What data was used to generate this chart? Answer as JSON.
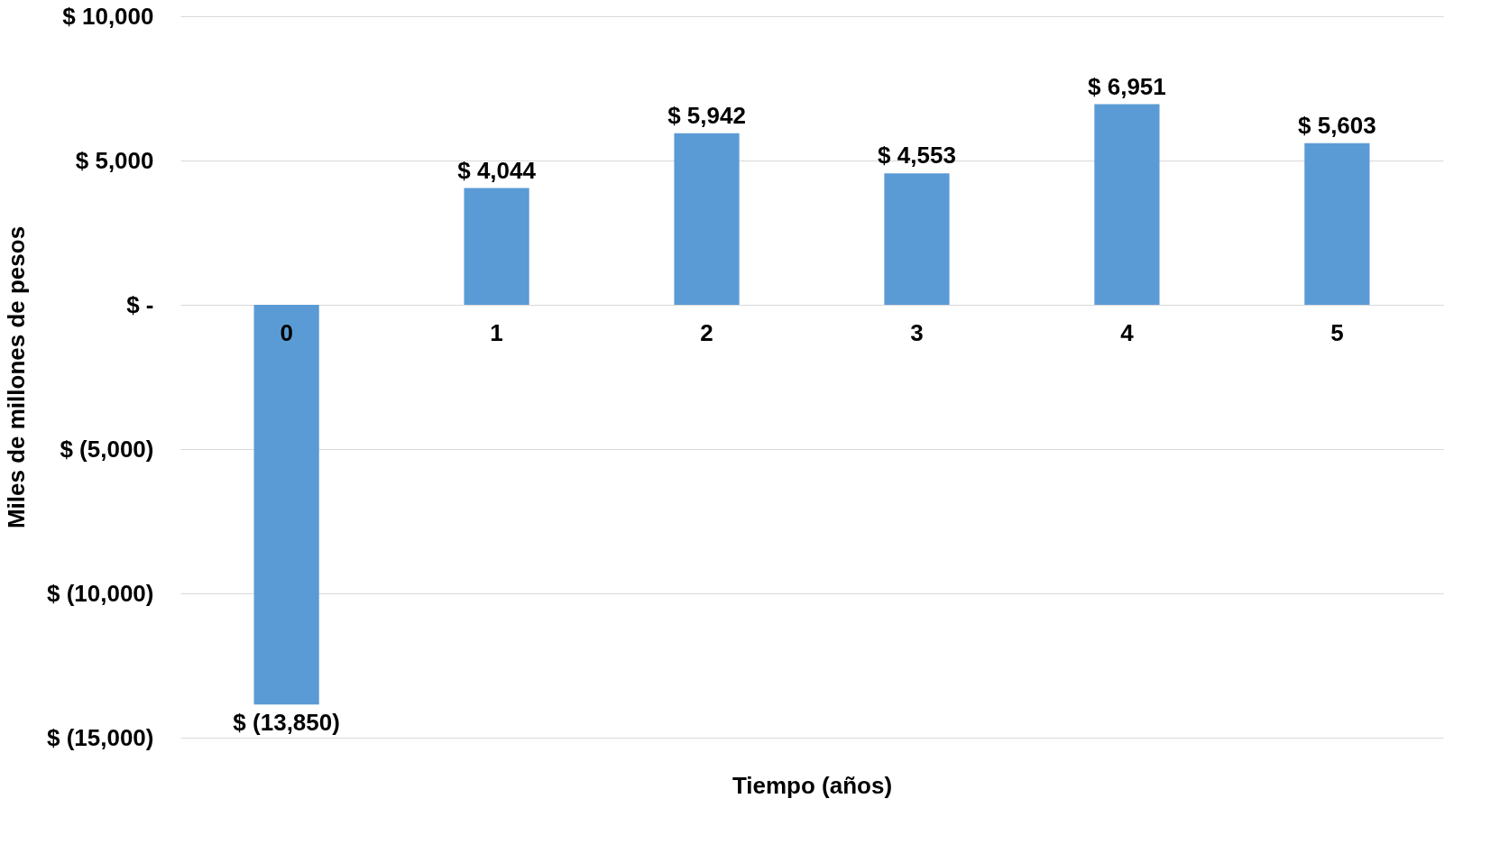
{
  "chart_data": {
    "type": "bar",
    "xlabel": "Tiempo (años)",
    "ylabel": "Miles de millones de pesos",
    "categories": [
      "0",
      "1",
      "2",
      "3",
      "4",
      "5"
    ],
    "values": [
      -13850,
      4044,
      5942,
      4553,
      6951,
      5603
    ],
    "value_labels": [
      "$ (13,850)",
      "$ 4,044",
      "$ 5,942",
      "$ 4,553",
      "$ 6,951",
      "$ 5,603"
    ],
    "color": "#5b9bd5",
    "ylim": [
      -15000,
      10000
    ],
    "yticks": [
      {
        "value": -15000,
        "label": "$ (15,000)"
      },
      {
        "value": -10000,
        "label": "$ (10,000)"
      },
      {
        "value": -5000,
        "label": "$ (5,000)"
      },
      {
        "value": 0,
        "label": "$ -"
      },
      {
        "value": 5000,
        "label": "$ 5,000"
      },
      {
        "value": 10000,
        "label": "$ 10,000"
      }
    ],
    "grid": "y"
  }
}
